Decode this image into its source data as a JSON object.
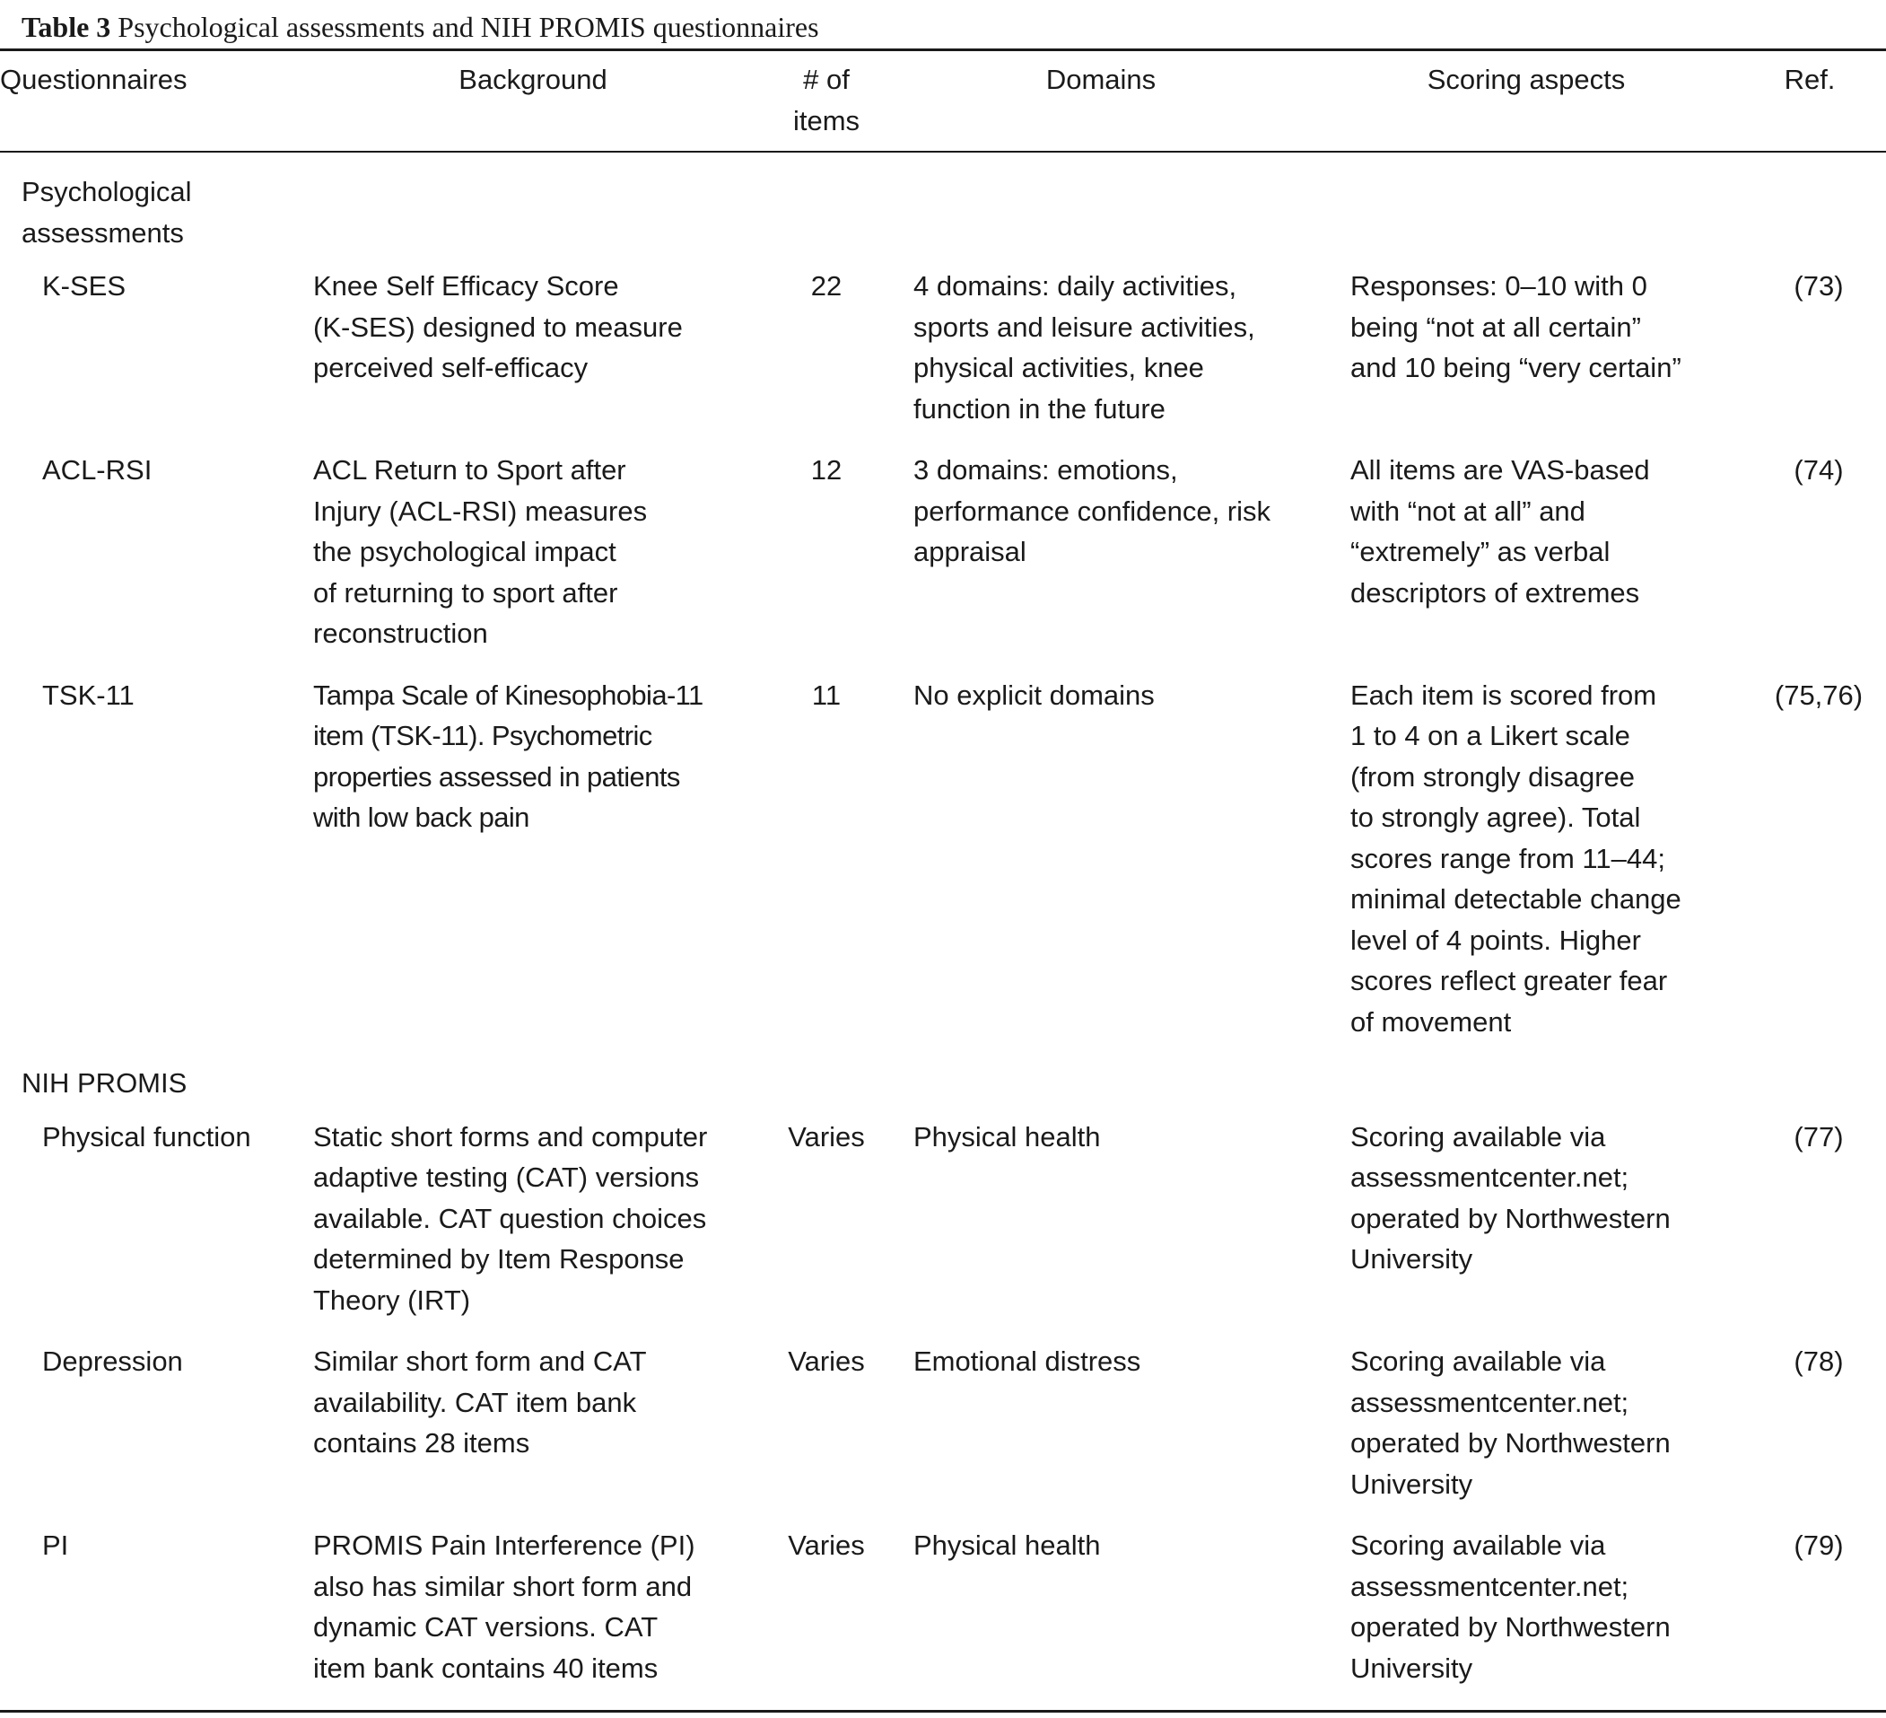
{
  "caption": {
    "label": "Table 3",
    "title": "Psychological assessments and NIH PROMIS questionnaires"
  },
  "headers": {
    "questionnaires": "Questionnaires",
    "background": "Background",
    "items_line1": "# of",
    "items_line2": "items",
    "domains": "Domains",
    "scoring": "Scoring aspects",
    "ref": "Ref."
  },
  "groups": [
    {
      "title_line1": "Psychological",
      "title_line2": "assessments",
      "rows": [
        {
          "name": "K-SES",
          "background": [
            "Knee Self Efficacy Score",
            "(K-SES) designed to measure",
            "perceived self-efficacy"
          ],
          "items": "22",
          "domains": [
            "4 domains: daily activities,",
            "sports and leisure activities,",
            "physical activities, knee",
            "function in the future"
          ],
          "scoring": [
            "Responses: 0–10 with 0",
            "being “not at all certain”",
            "and 10 being “very certain”"
          ],
          "ref": "(73)"
        },
        {
          "name": "ACL-RSI",
          "background": [
            "ACL Return to Sport after",
            "Injury (ACL-RSI) measures",
            "the psychological impact",
            "of returning to sport after",
            "reconstruction"
          ],
          "items": "12",
          "domains": [
            "3 domains: emotions,",
            "performance confidence, risk",
            "appraisal"
          ],
          "scoring": [
            "All items are VAS-based",
            "with “not at all” and",
            "“extremely” as verbal",
            "descriptors of extremes"
          ],
          "ref": "(74)"
        },
        {
          "name": "TSK-11",
          "background": [
            "Tampa Scale of Kinesophobia-11",
            "item (TSK-11). Psychometric",
            "properties assessed in patients",
            "with low back pain"
          ],
          "items": "11",
          "domains": [
            "No explicit domains"
          ],
          "scoring": [
            "Each item is scored from",
            "1 to 4 on a Likert scale",
            "(from strongly disagree",
            "to strongly agree). Total",
            "scores range from 11–44;",
            "minimal detectable change",
            "level of 4 points. Higher",
            "scores reflect greater fear",
            "of movement"
          ],
          "ref": "(75,76)"
        }
      ]
    },
    {
      "title_line1": "NIH PROMIS",
      "title_line2": "",
      "rows": [
        {
          "name": "Physical function",
          "background": [
            "Static short forms and computer",
            "adaptive testing (CAT) versions",
            "available. CAT question choices",
            "determined by Item Response",
            "Theory (IRT)"
          ],
          "items": "Varies",
          "domains": [
            "Physical health"
          ],
          "scoring": [
            "Scoring available via",
            "assessmentcenter.net;",
            "operated by Northwestern",
            "University"
          ],
          "ref": "(77)"
        },
        {
          "name": "Depression",
          "background": [
            "Similar short form and CAT",
            "availability. CAT item bank",
            "contains 28 items"
          ],
          "items": "Varies",
          "domains": [
            "Emotional distress"
          ],
          "scoring": [
            "Scoring available via",
            "assessmentcenter.net;",
            "operated by Northwestern",
            "University"
          ],
          "ref": "(78)"
        },
        {
          "name": "PI",
          "background": [
            "PROMIS Pain Interference (PI)",
            "also has similar short form and",
            "dynamic CAT versions. CAT",
            "item bank contains 40 items"
          ],
          "items": "Varies",
          "domains": [
            "Physical health"
          ],
          "scoring": [
            "Scoring available via",
            "assessmentcenter.net;",
            "operated by Northwestern",
            "University"
          ],
          "ref": "(79)"
        }
      ]
    }
  ]
}
